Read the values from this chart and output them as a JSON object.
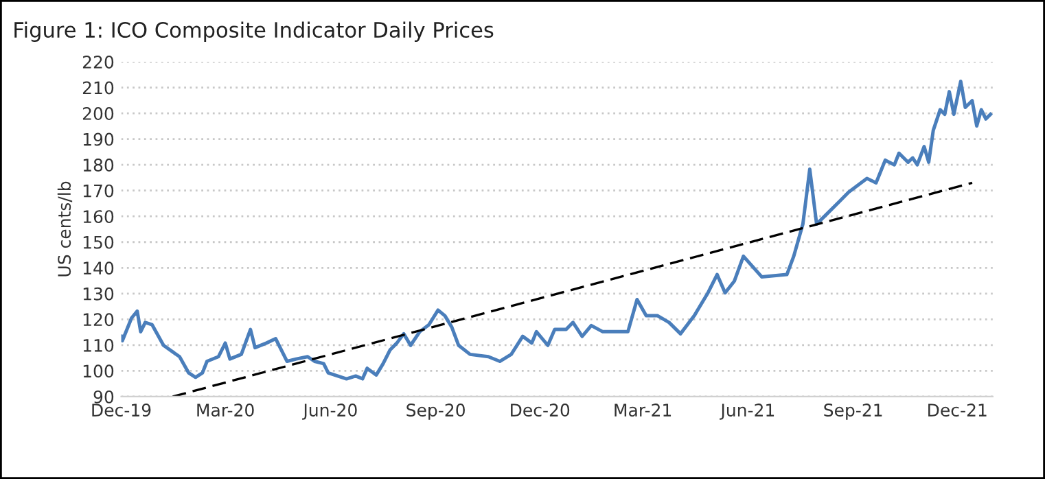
{
  "chart_data": {
    "type": "line",
    "title": "Figure 1: ICO Composite Indicator Daily Prices",
    "ylabel": "US cents/lb",
    "xlim": [
      "2019-12-01",
      "2022-01-01"
    ],
    "ylim": [
      90,
      220
    ],
    "xticks": [
      {
        "value": "2019-12-01",
        "label": "Dec-19"
      },
      {
        "value": "2020-03-01",
        "label": "Mar-20"
      },
      {
        "value": "2020-06-01",
        "label": "Jun-20"
      },
      {
        "value": "2020-09-01",
        "label": "Sep-20"
      },
      {
        "value": "2020-12-01",
        "label": "Dec-20"
      },
      {
        "value": "2021-03-01",
        "label": "Mar-21"
      },
      {
        "value": "2021-06-01",
        "label": "Jun-21"
      },
      {
        "value": "2021-09-01",
        "label": "Sep-21"
      },
      {
        "value": "2021-12-01",
        "label": "Dec-21"
      }
    ],
    "yticks": [
      90,
      100,
      110,
      120,
      130,
      140,
      150,
      160,
      170,
      180,
      190,
      200,
      210,
      220
    ],
    "grid": "y",
    "legend": false,
    "series": [
      {
        "color": "#4a7ebb",
        "line_style": "solid",
        "x": [
          "2019-12-01",
          "2019-12-02",
          "2019-12-10",
          "2019-12-15",
          "2019-12-18",
          "2019-12-22",
          "2019-12-28",
          "2020-01-07",
          "2020-01-21",
          "2020-01-29",
          "2020-02-04",
          "2020-02-10",
          "2020-02-14",
          "2020-02-24",
          "2020-03-01",
          "2020-03-05",
          "2020-03-15",
          "2020-03-23",
          "2020-03-27",
          "2020-04-06",
          "2020-04-14",
          "2020-04-24",
          "2020-05-02",
          "2020-05-12",
          "2020-05-18",
          "2020-05-26",
          "2020-05-30",
          "2020-06-15",
          "2020-06-23",
          "2020-06-29",
          "2020-07-03",
          "2020-07-11",
          "2020-07-17",
          "2020-07-23",
          "2020-07-29",
          "2020-08-04",
          "2020-08-10",
          "2020-08-18",
          "2020-08-26",
          "2020-09-03",
          "2020-09-09",
          "2020-09-15",
          "2020-09-21",
          "2020-10-01",
          "2020-10-17",
          "2020-10-27",
          "2020-11-06",
          "2020-11-16",
          "2020-11-24",
          "2020-11-28",
          "2020-12-08",
          "2020-12-14",
          "2020-12-24",
          "2020-12-30",
          "2021-01-07",
          "2021-01-15",
          "2021-01-25",
          "2021-02-10",
          "2021-02-16",
          "2021-02-24",
          "2021-03-04",
          "2021-03-14",
          "2021-03-24",
          "2021-04-03",
          "2021-04-15",
          "2021-04-27",
          "2021-05-05",
          "2021-05-12",
          "2021-05-20",
          "2021-05-28",
          "2021-06-13",
          "2021-07-05",
          "2021-07-11",
          "2021-07-19",
          "2021-07-25",
          "2021-07-31",
          "2021-08-08",
          "2021-08-20",
          "2021-08-28",
          "2021-09-13",
          "2021-09-21",
          "2021-09-29",
          "2021-10-07",
          "2021-10-11",
          "2021-10-19",
          "2021-10-23",
          "2021-10-27",
          "2021-11-02",
          "2021-11-06",
          "2021-11-10",
          "2021-11-16",
          "2021-11-20",
          "2021-11-24",
          "2021-11-28",
          "2021-12-04",
          "2021-12-08",
          "2021-12-14",
          "2021-12-18",
          "2021-12-22",
          "2021-12-26",
          "2021-12-30"
        ],
        "values": [
          113.4,
          111.7,
          120.5,
          123.2,
          115.2,
          118.8,
          117.9,
          109.9,
          105.5,
          99.2,
          97.5,
          99.2,
          103.7,
          105.5,
          110.8,
          104.6,
          106.4,
          116.1,
          109.0,
          110.8,
          112.5,
          103.7,
          104.6,
          105.5,
          103.7,
          102.8,
          99.2,
          96.9,
          98.0,
          96.9,
          101.0,
          98.4,
          102.8,
          108.1,
          110.8,
          114.4,
          109.9,
          115.2,
          117.9,
          123.6,
          121.4,
          117.0,
          109.9,
          106.4,
          105.5,
          103.7,
          106.4,
          113.4,
          110.8,
          115.2,
          109.9,
          116.1,
          116.1,
          118.8,
          113.4,
          117.6,
          115.2,
          115.2,
          115.2,
          127.7,
          121.4,
          121.4,
          118.8,
          114.4,
          121.4,
          130.3,
          137.4,
          130.3,
          134.8,
          144.5,
          136.5,
          137.4,
          144.5,
          157,
          178.3,
          157,
          160.5,
          165.8,
          169.4,
          174.7,
          173,
          181.8,
          180,
          184.5,
          181,
          182.7,
          180,
          187.1,
          181,
          193.4,
          201.4,
          199.6,
          208.4,
          199.6,
          212.4,
          202.3,
          204.9,
          195.1,
          201.4,
          197.8,
          199.6
        ]
      },
      {
        "type": "line",
        "color": "#000000",
        "line_style": "dashed",
        "x": [
          "2020-01-15",
          "2021-12-14"
        ],
        "values": [
          90,
          173
        ]
      }
    ]
  }
}
